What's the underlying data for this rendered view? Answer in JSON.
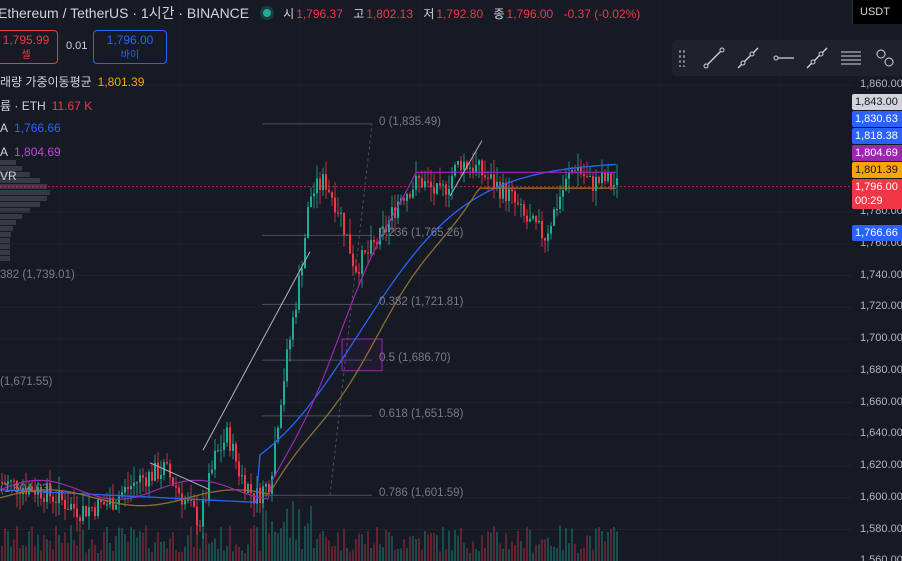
{
  "header": {
    "symbol": "Ethereum / TetherUS · 1시간 · BINANCE",
    "ohlc": [
      {
        "key": "시",
        "value": "1,796.37"
      },
      {
        "key": "고",
        "value": "1,802.13"
      },
      {
        "key": "저",
        "value": "1,792.80"
      },
      {
        "key": "종",
        "value": "1,796.00"
      }
    ],
    "change": "-0.37 (-0.02%)"
  },
  "trade": {
    "sell_price": "1,795.99",
    "sell_label": "셀",
    "quantity": "0.01",
    "buy_price": "1,796.00",
    "buy_label": "바이"
  },
  "currency": "USDT",
  "indicators": [
    {
      "label": "래량 가중이동평균",
      "value": "1,801.39",
      "color": "#f7a600"
    },
    {
      "label": "륨 · ETH",
      "value": "11.67 K",
      "color": "#f23645"
    },
    {
      "label": "A",
      "value": "1,766.66",
      "color": "#2962ff"
    },
    {
      "label": "A",
      "value": "1,804.69",
      "color": "#9c27b0"
    },
    {
      "label": "VR",
      "value": "",
      "color": "#d1d4dc"
    }
  ],
  "toolbar": {
    "items": [
      "trend-line-icon",
      "ray-icon",
      "horizontal-ray-icon",
      "extended-line-icon",
      "parallel-channel-icon",
      "pitchfork-icon"
    ]
  },
  "price_axis": {
    "ticks": [
      "1,860.00",
      "1,780.00",
      "1,760.00",
      "1,740.00",
      "1,720.00",
      "1,700.00",
      "1,680.00",
      "1,660.00",
      "1,640.00",
      "1,620.00",
      "1,600.00",
      "1,580.00",
      "1,560.00"
    ],
    "labels": [
      {
        "text": "1,843.00",
        "color": "#d1d4dc",
        "text_color": "#131722"
      },
      {
        "text": "1,830.63",
        "color": "#2962ff",
        "text_color": "#ffffff"
      },
      {
        "text": "1,818.38",
        "color": "#2962ff",
        "text_color": "#ffffff"
      },
      {
        "text": "1,804.69",
        "color": "#9c27b0",
        "text_color": "#ffffff"
      },
      {
        "text": "1,801.39",
        "color": "#f7a600",
        "text_color": "#131722"
      },
      {
        "text": "1,796.00",
        "color": "#f23645",
        "text_color": "#ffffff"
      },
      {
        "text": "00:29",
        "color": "#f23645",
        "text_color": "#ffffff"
      },
      {
        "text": "1,766.66",
        "color": "#2962ff",
        "text_color": "#ffffff"
      }
    ]
  },
  "fib_labels": [
    "0 (1,835.49)",
    "0.236 (1,765.26)",
    "0.382 (1,721.81)",
    "0.5 (1,686.70)",
    "0.618 (1,651.58)",
    "0.786 (1,601.59)"
  ],
  "left_fib_labels": [
    "382 (1,739.01)",
    "(1,671.55)",
    "(1,604.03)"
  ],
  "colors": {
    "background": "#161a25",
    "up": "#22ab94",
    "down": "#f23645",
    "vwma": "#f7a600",
    "sma_blue": "#2962ff",
    "sma_purple": "#9c27b0",
    "ema_brown": "#8d6e32"
  }
}
